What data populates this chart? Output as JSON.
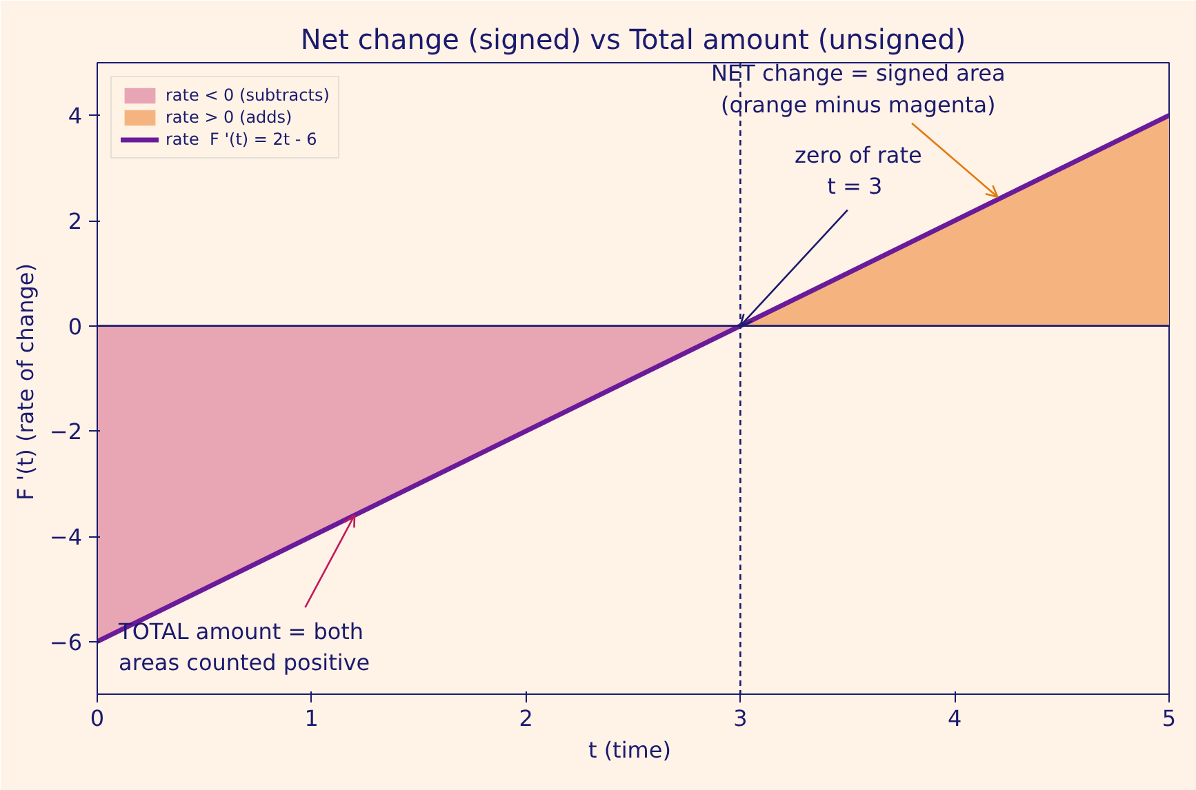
{
  "chart_data": {
    "type": "line",
    "title": "Net change (signed) vs Total amount (unsigned)",
    "xlabel": "t  (time)",
    "ylabel": "F '(t)  (rate of change)",
    "series": [
      {
        "name": "rate < 0 (subtracts)",
        "type": "area",
        "color": "#e8a5b4",
        "x": [
          0,
          3
        ],
        "values": [
          -6,
          0
        ]
      },
      {
        "name": "rate > 0 (adds)",
        "type": "area",
        "color": "#f5b47f",
        "x": [
          3,
          5
        ],
        "values": [
          0,
          4
        ]
      },
      {
        "name": "rate  F '(t) = 2t - 6",
        "color": "#6a1b9a",
        "x": [
          0,
          5
        ],
        "values": [
          -6,
          4
        ]
      }
    ],
    "xlim": [
      0,
      5
    ],
    "ylim": [
      -7,
      5
    ],
    "xticks": [
      0,
      1,
      2,
      3,
      4,
      5
    ],
    "yticks": [
      -6,
      -4,
      -2,
      0,
      2,
      4
    ],
    "ref_lines": [
      {
        "axis": "y",
        "value": 0,
        "label": null,
        "color": "#1a1a6e",
        "line_style": "solid"
      },
      {
        "axis": "x",
        "value": 3,
        "label": null,
        "color": "#1a1a6e",
        "line_style": "dashed"
      }
    ],
    "annotations": [
      {
        "text": "NET change = signed area\n(orange minus magenta)",
        "x": 4.2,
        "y": 2.45
      },
      {
        "text": "zero of rate\n t = 3",
        "x": 3,
        "y": 0
      },
      {
        "text": "TOTAL amount = both\nareas counted positive",
        "x": 1.2,
        "y": -3.6
      }
    ],
    "grid": false,
    "legend": "top left"
  }
}
